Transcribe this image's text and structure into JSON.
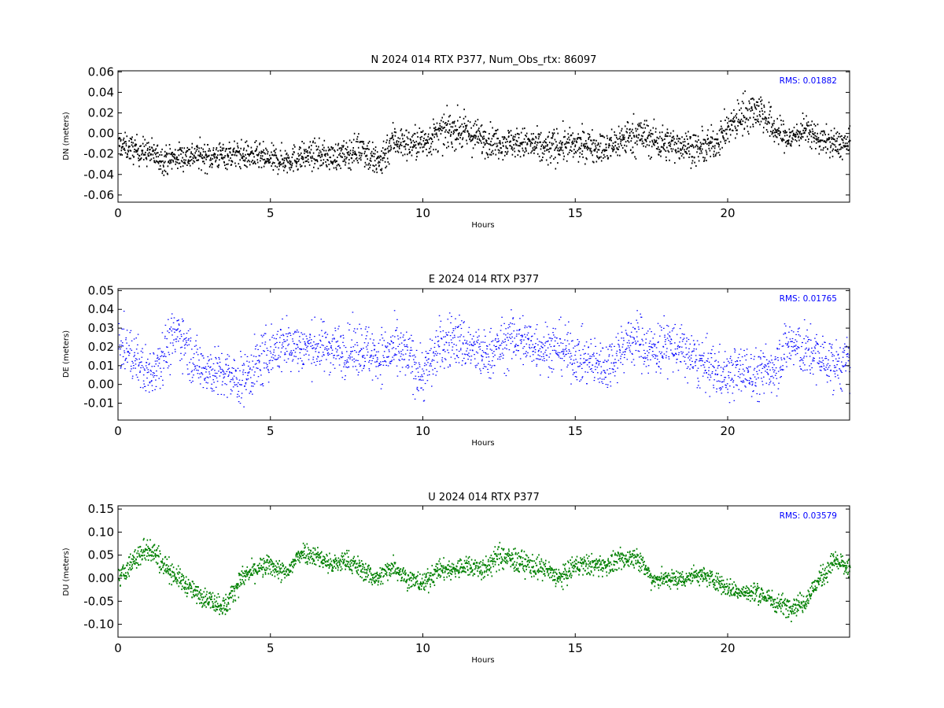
{
  "chart_data": [
    {
      "type": "scatter",
      "title": "N 2024 014 RTX  P377, Num_Obs_rtx: 86097",
      "xlabel": "Hours",
      "ylabel": "DN (meters)",
      "xlim": [
        0,
        24
      ],
      "ylim": [
        -0.067,
        0.061
      ],
      "xticks": [
        "0",
        "5",
        "10",
        "15",
        "20"
      ],
      "yticks": [
        "-0.06",
        "-0.04",
        "-0.02",
        "0.00",
        "0.02",
        "0.04",
        "0.06"
      ],
      "annotation": "RMS:  0.01882",
      "color": "#000000",
      "grid": false,
      "trend": {
        "x": [
          0,
          0.5,
          1,
          1.5,
          2,
          2.5,
          3,
          3.5,
          4,
          4.5,
          5,
          5.5,
          6,
          6.5,
          7,
          7.5,
          8,
          8.5,
          9,
          9.5,
          10,
          10.5,
          11,
          11.5,
          12,
          12.5,
          13,
          13.5,
          14,
          14.5,
          15,
          15.5,
          16,
          16.5,
          17,
          17.5,
          18,
          18.5,
          19,
          19.5,
          20,
          20.5,
          21,
          21.5,
          22,
          22.5,
          23,
          23.5,
          24
        ],
        "y": [
          -0.01,
          -0.015,
          -0.018,
          -0.025,
          -0.022,
          -0.02,
          -0.022,
          -0.02,
          -0.02,
          -0.022,
          -0.025,
          -0.025,
          -0.022,
          -0.02,
          -0.022,
          -0.02,
          -0.012,
          -0.03,
          -0.005,
          -0.01,
          -0.008,
          0.0,
          0.005,
          0.0,
          -0.005,
          -0.008,
          -0.008,
          -0.01,
          -0.015,
          -0.01,
          -0.012,
          -0.01,
          -0.015,
          -0.005,
          0.0,
          -0.005,
          -0.01,
          -0.01,
          -0.015,
          -0.01,
          0.005,
          0.02,
          0.025,
          0.005,
          -0.005,
          0.005,
          -0.005,
          -0.01,
          -0.01
        ]
      },
      "scatter_width": [
        0.01,
        0.012,
        0.012,
        0.012,
        0.012,
        0.012,
        0.012,
        0.012,
        0.012,
        0.012,
        0.012,
        0.012,
        0.012,
        0.012,
        0.012,
        0.012,
        0.015,
        0.018,
        0.015,
        0.014,
        0.015,
        0.015,
        0.016,
        0.016,
        0.014,
        0.013,
        0.013,
        0.014,
        0.016,
        0.015,
        0.014,
        0.013,
        0.014,
        0.016,
        0.017,
        0.016,
        0.015,
        0.014,
        0.014,
        0.014,
        0.015,
        0.018,
        0.017,
        0.015,
        0.012,
        0.012,
        0.012,
        0.013,
        0.012
      ]
    },
    {
      "type": "scatter",
      "title": "E 2024 014 RTX  P377",
      "xlabel": "Hours",
      "ylabel": "DE (meters)",
      "xlim": [
        0,
        24
      ],
      "ylim": [
        -0.019,
        0.051
      ],
      "xticks": [
        "0",
        "5",
        "10",
        "15",
        "20"
      ],
      "yticks": [
        "-0.01",
        "0.00",
        "0.01",
        "0.02",
        "0.03",
        "0.04",
        "0.05"
      ],
      "annotation": "RMS:  0.01765",
      "color": "#0000ff",
      "grid": false,
      "trend": {
        "x": [
          0,
          0.5,
          1,
          1.5,
          2,
          2.5,
          3,
          3.5,
          4,
          4.5,
          5,
          5.5,
          6,
          6.5,
          7,
          7.5,
          8,
          8.5,
          9,
          9.5,
          10,
          10.5,
          11,
          11.5,
          12,
          12.5,
          13,
          13.5,
          14,
          14.5,
          15,
          15.5,
          16,
          16.5,
          17,
          17.5,
          18,
          18.5,
          19,
          19.5,
          20,
          20.5,
          21,
          21.5,
          22,
          22.5,
          23,
          23.5,
          24
        ],
        "y": [
          0.022,
          0.015,
          0.005,
          0.018,
          0.028,
          0.012,
          0.008,
          0.005,
          0.002,
          0.01,
          0.018,
          0.022,
          0.02,
          0.02,
          0.02,
          0.018,
          0.02,
          0.015,
          0.018,
          0.015,
          0.005,
          0.02,
          0.025,
          0.02,
          0.015,
          0.02,
          0.025,
          0.022,
          0.02,
          0.02,
          0.015,
          0.012,
          0.01,
          0.02,
          0.025,
          0.018,
          0.022,
          0.018,
          0.012,
          0.008,
          0.005,
          0.008,
          0.005,
          0.01,
          0.022,
          0.018,
          0.015,
          0.01,
          0.012
        ]
      },
      "scatter_width": [
        0.012,
        0.012,
        0.012,
        0.013,
        0.013,
        0.012,
        0.012,
        0.012,
        0.012,
        0.013,
        0.013,
        0.013,
        0.012,
        0.012,
        0.012,
        0.012,
        0.013,
        0.013,
        0.013,
        0.013,
        0.013,
        0.013,
        0.013,
        0.013,
        0.012,
        0.012,
        0.013,
        0.013,
        0.012,
        0.012,
        0.012,
        0.012,
        0.012,
        0.012,
        0.013,
        0.013,
        0.013,
        0.012,
        0.012,
        0.012,
        0.012,
        0.012,
        0.012,
        0.013,
        0.013,
        0.013,
        0.012,
        0.012,
        0.012
      ]
    },
    {
      "type": "scatter",
      "title": "U 2024 014 RTX  P377",
      "xlabel": "Hours",
      "ylabel": "DU (meters)",
      "xlim": [
        0,
        24
      ],
      "ylim": [
        -0.128,
        0.157
      ],
      "xticks": [
        "0",
        "5",
        "10",
        "15",
        "20"
      ],
      "yticks": [
        "-0.10",
        "-0.05",
        "0.00",
        "0.05",
        "0.10",
        "0.15"
      ],
      "annotation": "RMS:  0.03579",
      "color": "#008000",
      "grid": false,
      "trend": {
        "x": [
          0,
          0.5,
          1,
          1.5,
          2,
          2.5,
          3,
          3.5,
          4,
          4.5,
          5,
          5.5,
          6,
          6.5,
          7,
          7.5,
          8,
          8.5,
          9,
          9.5,
          10,
          10.5,
          11,
          11.5,
          12,
          12.5,
          13,
          13.5,
          14,
          14.5,
          15,
          15.5,
          16,
          16.5,
          17,
          17.5,
          18,
          18.5,
          19,
          19.5,
          20,
          20.5,
          21,
          21.5,
          22,
          22.5,
          23,
          23.5,
          24
        ],
        "y": [
          0.0,
          0.04,
          0.07,
          0.03,
          0.0,
          -0.03,
          -0.045,
          -0.06,
          0.0,
          0.02,
          0.03,
          0.01,
          0.06,
          0.05,
          0.03,
          0.04,
          0.02,
          0.0,
          0.03,
          0.0,
          -0.01,
          0.02,
          0.02,
          0.03,
          0.02,
          0.05,
          0.04,
          0.03,
          0.02,
          0.0,
          0.03,
          0.03,
          0.03,
          0.04,
          0.05,
          0.0,
          0.0,
          0.0,
          0.01,
          0.0,
          -0.02,
          -0.03,
          -0.03,
          -0.05,
          -0.06,
          -0.05,
          0.0,
          0.04,
          0.02
        ]
      },
      "scatter_width": [
        0.02,
        0.022,
        0.028,
        0.022,
        0.02,
        0.018,
        0.018,
        0.022,
        0.02,
        0.02,
        0.02,
        0.02,
        0.02,
        0.02,
        0.02,
        0.02,
        0.02,
        0.02,
        0.02,
        0.02,
        0.02,
        0.02,
        0.02,
        0.02,
        0.022,
        0.024,
        0.025,
        0.022,
        0.022,
        0.022,
        0.02,
        0.02,
        0.02,
        0.02,
        0.02,
        0.018,
        0.018,
        0.018,
        0.018,
        0.018,
        0.018,
        0.018,
        0.02,
        0.02,
        0.02,
        0.02,
        0.02,
        0.022,
        0.02
      ]
    }
  ]
}
